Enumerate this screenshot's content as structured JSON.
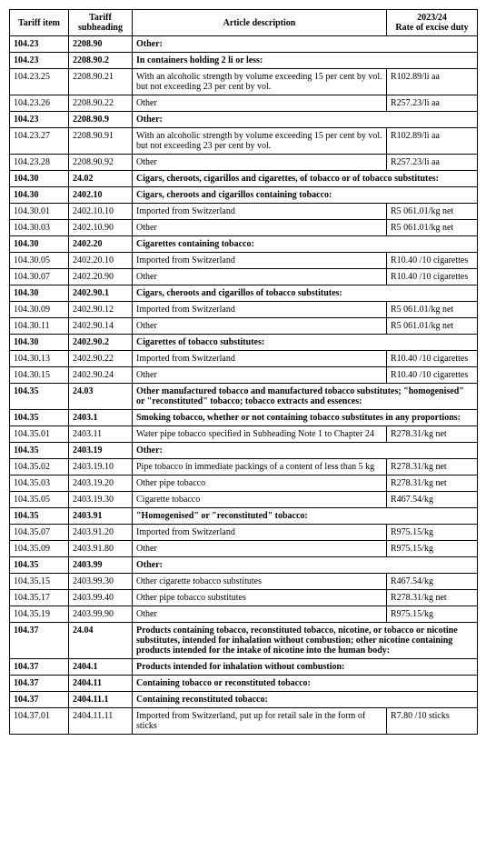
{
  "headers": {
    "item": "Tariff item",
    "subheading": "Tariff subheading",
    "description": "Article description",
    "rate": "2023/24\nRate of excise duty"
  },
  "rows": [
    {
      "item": "104.23",
      "sub": "2208.90",
      "desc": "Other:",
      "rate": "",
      "bold": true,
      "span": true
    },
    {
      "item": "104.23",
      "sub": "2208.90.2",
      "desc": "In containers holding 2 li or less:",
      "rate": "",
      "bold": true,
      "span": true
    },
    {
      "item": "104.23.25",
      "sub": "2208.90.21",
      "desc": "With an alcoholic strength by volume exceeding 15 per cent by vol. but not exceeding 23 per cent by vol.",
      "rate": "R102.89/li aa",
      "bold": false,
      "span": false
    },
    {
      "item": "104.23.26",
      "sub": "2208.90.22",
      "desc": "Other",
      "rate": "R257.23/li aa",
      "bold": false,
      "span": false
    },
    {
      "item": "104.23",
      "sub": "2208.90.9",
      "desc": "Other:",
      "rate": "",
      "bold": true,
      "span": true
    },
    {
      "item": "104.23.27",
      "sub": "2208.90.91",
      "desc": "With an alcoholic strength by volume exceeding 15 per cent by vol. but not exceeding 23 per cent by vol.",
      "rate": "R102.89/li aa",
      "bold": false,
      "span": false
    },
    {
      "item": "104.23.28",
      "sub": "2208.90.92",
      "desc": "Other",
      "rate": "R257.23/li aa",
      "bold": false,
      "span": false
    },
    {
      "item": "104.30",
      "sub": "24.02",
      "desc": "Cigars, cheroots, cigarillos and cigarettes, of tobacco or of tobacco substitutes:",
      "rate": "",
      "bold": true,
      "span": true
    },
    {
      "item": "104.30",
      "sub": "2402.10",
      "desc": "Cigars, cheroots and cigarillos containing tobacco:",
      "rate": "",
      "bold": true,
      "span": true
    },
    {
      "item": "104.30.01",
      "sub": "2402.10.10",
      "desc": "Imported from Switzerland",
      "rate": "R5 061.01/kg net",
      "bold": false,
      "span": false
    },
    {
      "item": "104.30.03",
      "sub": "2402.10.90",
      "desc": "Other",
      "rate": "R5 061.01/kg net",
      "bold": false,
      "span": false
    },
    {
      "item": "104.30",
      "sub": "2402.20",
      "desc": "Cigarettes containing tobacco:",
      "rate": "",
      "bold": true,
      "span": true
    },
    {
      "item": "104.30.05",
      "sub": "2402.20.10",
      "desc": "Imported from Switzerland",
      "rate": "R10.40 /10 cigarettes",
      "bold": false,
      "span": false
    },
    {
      "item": "104.30.07",
      "sub": "2402.20.90",
      "desc": "Other",
      "rate": "R10.40 /10 cigarettes",
      "bold": false,
      "span": false
    },
    {
      "item": "104.30",
      "sub": "2402.90.1",
      "desc": "Cigars, cheroots and cigarillos of tobacco substitutes:",
      "rate": "",
      "bold": true,
      "span": true
    },
    {
      "item": "104.30.09",
      "sub": "2402.90.12",
      "desc": "Imported from Switzerland",
      "rate": "R5 061.01/kg net",
      "bold": false,
      "span": false
    },
    {
      "item": "104.30.11",
      "sub": "2402.90.14",
      "desc": "Other",
      "rate": "R5 061.01/kg net",
      "bold": false,
      "span": false
    },
    {
      "item": "104.30",
      "sub": "2402.90.2",
      "desc": "Cigarettes of tobacco substitutes:",
      "rate": "",
      "bold": true,
      "span": true
    },
    {
      "item": "104.30.13",
      "sub": "2402.90.22",
      "desc": "Imported from Switzerland",
      "rate": "R10.40 /10 cigarettes",
      "bold": false,
      "span": false
    },
    {
      "item": "104.30.15",
      "sub": "2402.90.24",
      "desc": "Other",
      "rate": "R10.40 /10 cigarettes",
      "bold": false,
      "span": false
    },
    {
      "item": "104.35",
      "sub": "24.03",
      "desc": "Other manufactured tobacco and manufactured tobacco substitutes; \"homogenised\" or \"reconstituted\" tobacco; tobacco extracts and essences:",
      "rate": "",
      "bold": true,
      "span": true
    },
    {
      "item": "104.35",
      "sub": "2403.1",
      "desc": "Smoking tobacco, whether or not containing tobacco substitutes in any proportions:",
      "rate": "",
      "bold": true,
      "span": true
    },
    {
      "item": "104.35.01",
      "sub": "2403.11",
      "desc": "Water pipe tobacco specified in Subheading Note 1 to Chapter 24",
      "rate": "R278.31/kg net",
      "bold": false,
      "span": false
    },
    {
      "item": "104.35",
      "sub": "2403.19",
      "desc": "Other:",
      "rate": "",
      "bold": true,
      "span": true
    },
    {
      "item": "104.35.02",
      "sub": "2403.19.10",
      "desc": "Pipe tobacco in immediate packings of a content of less than 5 kg",
      "rate": "R278.31/kg net",
      "bold": false,
      "span": false
    },
    {
      "item": "104.35.03",
      "sub": "2403.19.20",
      "desc": "Other pipe tobacco",
      "rate": "R278.31/kg net",
      "bold": false,
      "span": false
    },
    {
      "item": "104.35.05",
      "sub": "2403.19.30",
      "desc": "Cigarette tobacco",
      "rate": "R467.54/kg",
      "bold": false,
      "span": false
    },
    {
      "item": "104.35",
      "sub": "2403.91",
      "desc": "\"Homogenised\" or \"reconstituted\" tobacco:",
      "rate": "",
      "bold": true,
      "span": true
    },
    {
      "item": "104.35.07",
      "sub": "2403.91.20",
      "desc": "Imported from Switzerland",
      "rate": "R975.15/kg",
      "bold": false,
      "span": false
    },
    {
      "item": "104.35.09",
      "sub": "2403.91.80",
      "desc": "Other",
      "rate": "R975.15/kg",
      "bold": false,
      "span": false
    },
    {
      "item": "104.35",
      "sub": "2403.99",
      "desc": "Other:",
      "rate": "",
      "bold": true,
      "span": true
    },
    {
      "item": "104.35.15",
      "sub": "2403.99.30",
      "desc": "Other cigarette tobacco substitutes",
      "rate": "R467.54/kg",
      "bold": false,
      "span": false
    },
    {
      "item": "104.35.17",
      "sub": "2403.99.40",
      "desc": "Other pipe tobacco substitutes",
      "rate": "R278.31/kg net",
      "bold": false,
      "span": false
    },
    {
      "item": "104.35.19",
      "sub": "2403.99.90",
      "desc": "Other",
      "rate": "R975.15/kg",
      "bold": false,
      "span": false
    },
    {
      "item": "104.37",
      "sub": "24.04",
      "desc": "Products containing tobacco, reconstituted tobacco, nicotine, or tobacco or nicotine substitutes, intended for inhalation without combustion; other nicotine containing products intended for the intake of nicotine into the human body:",
      "rate": "",
      "bold": true,
      "span": true
    },
    {
      "item": "104.37",
      "sub": "2404.1",
      "desc": "Products intended for inhalation without combustion:",
      "rate": "",
      "bold": true,
      "span": true
    },
    {
      "item": "104.37",
      "sub": "2404.11",
      "desc": "Containing tobacco or reconstituted tobacco:",
      "rate": "",
      "bold": true,
      "span": true
    },
    {
      "item": "104.37",
      "sub": "2404.11.1",
      "desc": "Containing reconstituted tobacco:",
      "rate": "",
      "bold": true,
      "span": true
    },
    {
      "item": "104.37.01",
      "sub": "2404.11.11",
      "desc": "Imported from Switzerland, put up for retail sale in the form of sticks",
      "rate": "R7.80 /10 sticks",
      "bold": false,
      "span": false
    }
  ]
}
